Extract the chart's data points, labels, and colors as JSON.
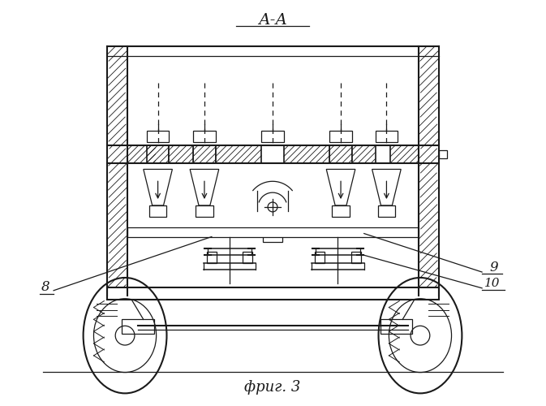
{
  "bg_color": "#ffffff",
  "line_color": "#1a1a1a",
  "figsize": [
    6.73,
    5.0
  ],
  "dpi": 100,
  "title": "А-А",
  "caption": "фриг. 3"
}
